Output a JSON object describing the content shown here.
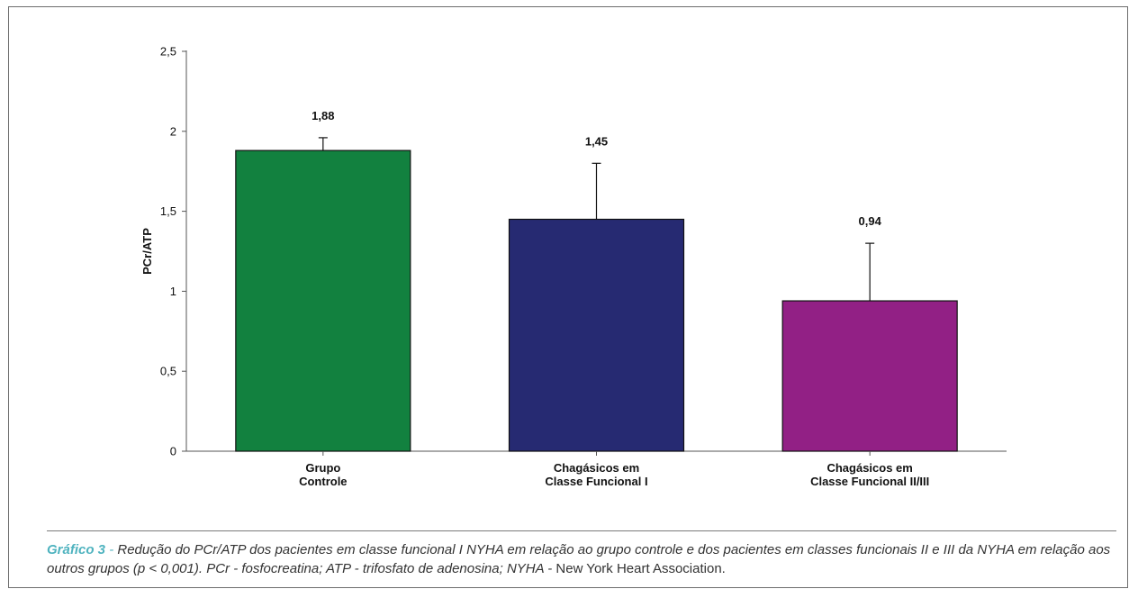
{
  "chart_data": {
    "type": "bar",
    "categories": [
      [
        "Grupo",
        "Controle"
      ],
      [
        "Chagásicos em",
        "Classe Funcional I"
      ],
      [
        "Chagásicos em",
        "Classe Funcional II/III"
      ]
    ],
    "values": [
      1.88,
      1.45,
      0.94
    ],
    "value_labels": [
      "1,88",
      "1,45",
      "0,94"
    ],
    "error_upper": [
      1.96,
      1.8,
      1.3
    ],
    "ylabel": "PCr/ATP",
    "ylim": [
      0,
      2.5
    ],
    "yticks": [
      0,
      0.5,
      1,
      1.5,
      2,
      2.5
    ],
    "ytick_labels": [
      "0",
      "0,5",
      "1",
      "1,5",
      "2",
      "2,5"
    ],
    "colors": [
      "#12813f",
      "#262a72",
      "#922085"
    ],
    "grid": false,
    "legend": "none"
  },
  "caption": {
    "label": "Gráfico 3",
    "separator": " - ",
    "text": "Redução do PCr/ATP dos pacientes em classe funcional I NYHA em relação ao grupo controle e dos pacientes em classes funcionais II e III da NYHA em relação aos outros grupos (p < 0,001). PCr - fosfocreatina; ATP - trifosfato de adenosina; NYHA - ",
    "tail": "New York Heart Association."
  }
}
